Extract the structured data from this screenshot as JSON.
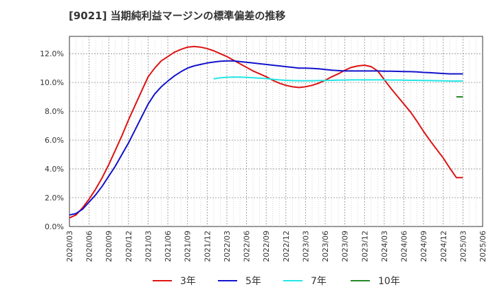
{
  "chart_data": {
    "type": "line",
    "title": "[9021]  当期純利益マージンの標準偏差の推移",
    "xlabel": "",
    "ylabel": "",
    "x_ticks": [
      "2020/03",
      "2020/06",
      "2020/09",
      "2020/12",
      "2021/03",
      "2021/06",
      "2021/09",
      "2021/12",
      "2022/03",
      "2022/06",
      "2022/09",
      "2022/12",
      "2023/03",
      "2023/06",
      "2023/09",
      "2023/12",
      "2024/03",
      "2024/06",
      "2024/09",
      "2024/12",
      "2025/03",
      "2025/06"
    ],
    "y_ticks": [
      "0.0%",
      "2.0%",
      "4.0%",
      "6.0%",
      "8.0%",
      "10.0%",
      "12.0%"
    ],
    "ylim": [
      0,
      13.2
    ],
    "grid": true,
    "legend_position": "bottom",
    "series": [
      {
        "name": "3年",
        "color": "#dd1111",
        "x": [
          "2020/03",
          "2020/04",
          "2020/05",
          "2020/06",
          "2020/07",
          "2020/08",
          "2020/09",
          "2020/10",
          "2020/11",
          "2020/12",
          "2021/01",
          "2021/02",
          "2021/03",
          "2021/04",
          "2021/05",
          "2021/06",
          "2021/07",
          "2021/08",
          "2021/09",
          "2021/10",
          "2021/11",
          "2021/12",
          "2022/01",
          "2022/02",
          "2022/03",
          "2022/04",
          "2022/05",
          "2022/06",
          "2022/07",
          "2022/08",
          "2022/09",
          "2022/10",
          "2022/11",
          "2022/12",
          "2023/01",
          "2023/02",
          "2023/03",
          "2023/04",
          "2023/05",
          "2023/06",
          "2023/07",
          "2023/08",
          "2023/09",
          "2023/10",
          "2023/11",
          "2023/12",
          "2024/01",
          "2024/02",
          "2024/03",
          "2024/04",
          "2024/05",
          "2024/06",
          "2024/07",
          "2024/08",
          "2024/09",
          "2024/10",
          "2024/11",
          "2024/12",
          "2025/01",
          "2025/02",
          "2025/03"
        ],
        "values": [
          0.6,
          0.8,
          1.3,
          1.9,
          2.6,
          3.4,
          4.3,
          5.3,
          6.3,
          7.4,
          8.4,
          9.4,
          10.4,
          11.0,
          11.5,
          11.8,
          12.1,
          12.3,
          12.45,
          12.5,
          12.45,
          12.35,
          12.2,
          12.0,
          11.8,
          11.55,
          11.3,
          11.05,
          10.8,
          10.6,
          10.4,
          10.15,
          9.95,
          9.8,
          9.7,
          9.65,
          9.7,
          9.8,
          9.95,
          10.15,
          10.4,
          10.6,
          10.85,
          11.05,
          11.15,
          11.2,
          11.1,
          10.8,
          10.2,
          9.6,
          9.05,
          8.5,
          7.95,
          7.3,
          6.6,
          5.95,
          5.35,
          4.75,
          4.05,
          3.4,
          3.4
        ]
      },
      {
        "name": "5年",
        "color": "#1111cc",
        "x": [
          "2020/03",
          "2020/04",
          "2020/05",
          "2020/06",
          "2020/07",
          "2020/08",
          "2020/09",
          "2020/10",
          "2020/11",
          "2020/12",
          "2021/01",
          "2021/02",
          "2021/03",
          "2021/04",
          "2021/05",
          "2021/06",
          "2021/07",
          "2021/08",
          "2021/09",
          "2021/10",
          "2021/11",
          "2021/12",
          "2022/01",
          "2022/02",
          "2022/03",
          "2022/04",
          "2022/05",
          "2022/06",
          "2022/07",
          "2022/08",
          "2022/09",
          "2022/10",
          "2022/11",
          "2022/12",
          "2023/01",
          "2023/02",
          "2023/03",
          "2023/04",
          "2023/05",
          "2023/06",
          "2023/07",
          "2023/08",
          "2023/09",
          "2023/10",
          "2023/11",
          "2023/12",
          "2024/01",
          "2024/02",
          "2024/03",
          "2024/04",
          "2024/05",
          "2024/06",
          "2024/07",
          "2024/08",
          "2024/09",
          "2024/10",
          "2024/11",
          "2024/12",
          "2025/01",
          "2025/02",
          "2025/03"
        ],
        "values": [
          0.8,
          0.9,
          1.2,
          1.7,
          2.2,
          2.8,
          3.5,
          4.2,
          5.0,
          5.8,
          6.7,
          7.6,
          8.5,
          9.2,
          9.7,
          10.1,
          10.45,
          10.75,
          11.0,
          11.15,
          11.25,
          11.35,
          11.42,
          11.47,
          11.5,
          11.5,
          11.45,
          11.4,
          11.35,
          11.3,
          11.25,
          11.2,
          11.15,
          11.1,
          11.05,
          11.0,
          11.0,
          10.98,
          10.95,
          10.9,
          10.85,
          10.82,
          10.8,
          10.8,
          10.8,
          10.8,
          10.8,
          10.8,
          10.78,
          10.78,
          10.77,
          10.76,
          10.75,
          10.73,
          10.7,
          10.68,
          10.65,
          10.62,
          10.6,
          10.6,
          10.6
        ]
      },
      {
        "name": "7年",
        "color": "#22e6e6",
        "x": [
          "2022/01",
          "2022/02",
          "2022/03",
          "2022/04",
          "2022/05",
          "2022/06",
          "2022/07",
          "2022/08",
          "2022/09",
          "2022/10",
          "2022/11",
          "2022/12",
          "2023/01",
          "2023/02",
          "2023/03",
          "2023/04",
          "2023/05",
          "2023/06",
          "2023/07",
          "2023/08",
          "2023/09",
          "2023/10",
          "2023/11",
          "2023/12",
          "2024/01",
          "2024/02",
          "2024/03",
          "2024/04",
          "2024/05",
          "2024/06",
          "2024/07",
          "2024/08",
          "2024/09",
          "2024/10",
          "2024/11",
          "2024/12",
          "2025/01",
          "2025/02",
          "2025/03"
        ],
        "values": [
          10.25,
          10.32,
          10.36,
          10.38,
          10.37,
          10.35,
          10.33,
          10.3,
          10.27,
          10.22,
          10.18,
          10.15,
          10.13,
          10.12,
          10.12,
          10.12,
          10.13,
          10.14,
          10.15,
          10.16,
          10.17,
          10.18,
          10.18,
          10.18,
          10.18,
          10.18,
          10.18,
          10.17,
          10.17,
          10.16,
          10.15,
          10.15,
          10.14,
          10.13,
          10.12,
          10.11,
          10.1,
          10.1,
          10.1
        ]
      },
      {
        "name": "10年",
        "color": "#228822",
        "x": [
          "2025/02",
          "2025/03"
        ],
        "values": [
          9.0,
          9.0
        ]
      }
    ]
  }
}
